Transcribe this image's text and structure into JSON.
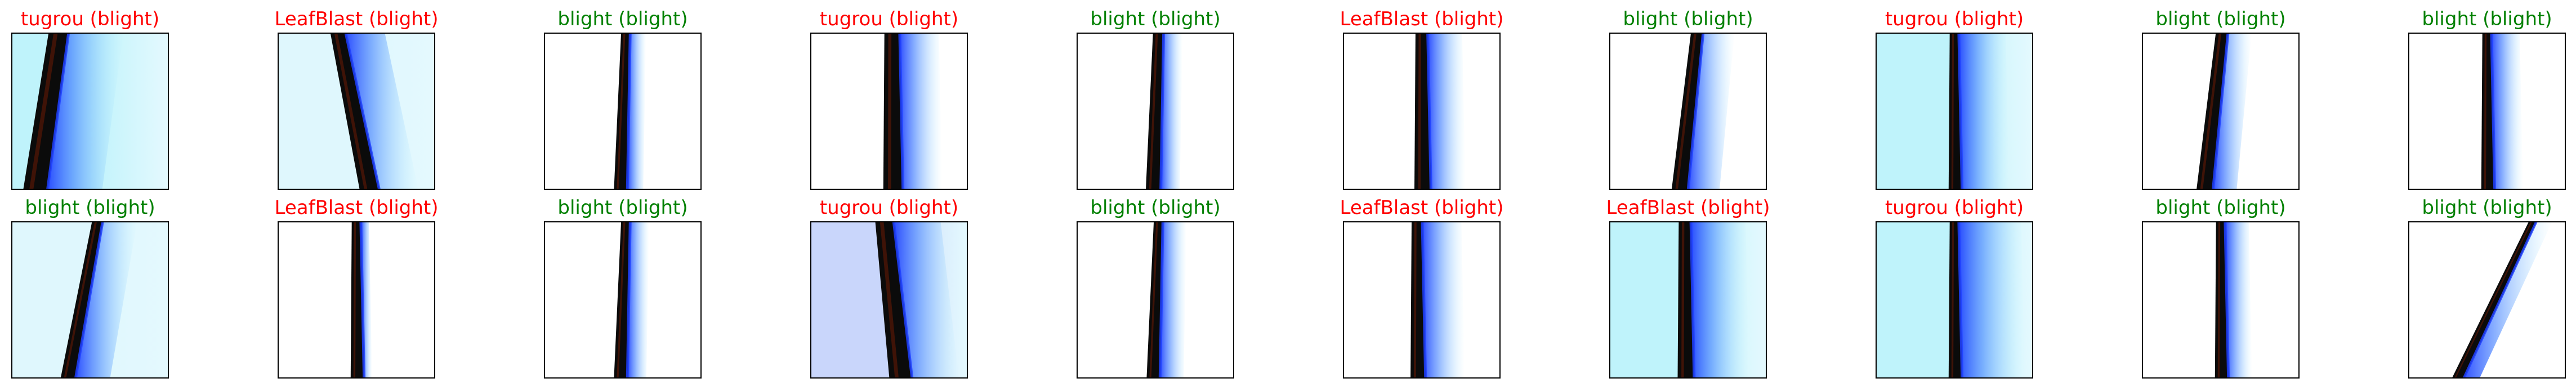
{
  "colors": {
    "correct": "#008000",
    "wrong": "#ff0000"
  },
  "rows": [
    [
      {
        "title": "tugrou (blight)",
        "predicted": "tugrou",
        "actual": "blight",
        "correct": false,
        "icon": "leaf-image"
      },
      {
        "title": "LeafBlast (blight)",
        "predicted": "LeafBlast",
        "actual": "blight",
        "correct": false,
        "icon": "leaf-image"
      },
      {
        "title": "blight (blight)",
        "predicted": "blight",
        "actual": "blight",
        "correct": true,
        "icon": "leaf-image"
      },
      {
        "title": "tugrou (blight)",
        "predicted": "tugrou",
        "actual": "blight",
        "correct": false,
        "icon": "leaf-image"
      },
      {
        "title": "blight (blight)",
        "predicted": "blight",
        "actual": "blight",
        "correct": true,
        "icon": "leaf-image"
      },
      {
        "title": "LeafBlast (blight)",
        "predicted": "LeafBlast",
        "actual": "blight",
        "correct": false,
        "icon": "leaf-image"
      },
      {
        "title": "blight (blight)",
        "predicted": "blight",
        "actual": "blight",
        "correct": true,
        "icon": "leaf-image"
      },
      {
        "title": "tugrou (blight)",
        "predicted": "tugrou",
        "actual": "blight",
        "correct": false,
        "icon": "leaf-image"
      },
      {
        "title": "blight (blight)",
        "predicted": "blight",
        "actual": "blight",
        "correct": true,
        "icon": "leaf-image"
      },
      {
        "title": "blight (blight)",
        "predicted": "blight",
        "actual": "blight",
        "correct": true,
        "icon": "leaf-image"
      }
    ],
    [
      {
        "title": "blight (blight)",
        "predicted": "blight",
        "actual": "blight",
        "correct": true,
        "icon": "leaf-image"
      },
      {
        "title": "LeafBlast (blight)",
        "predicted": "LeafBlast",
        "actual": "blight",
        "correct": false,
        "icon": "leaf-image"
      },
      {
        "title": "blight (blight)",
        "predicted": "blight",
        "actual": "blight",
        "correct": true,
        "icon": "leaf-image"
      },
      {
        "title": "tugrou (blight)",
        "predicted": "tugrou",
        "actual": "blight",
        "correct": false,
        "icon": "leaf-image"
      },
      {
        "title": "blight (blight)",
        "predicted": "blight",
        "actual": "blight",
        "correct": true,
        "icon": "leaf-image"
      },
      {
        "title": "LeafBlast (blight)",
        "predicted": "LeafBlast",
        "actual": "blight",
        "correct": false,
        "icon": "leaf-image"
      },
      {
        "title": "LeafBlast (blight)",
        "predicted": "LeafBlast",
        "actual": "blight",
        "correct": false,
        "icon": "leaf-image"
      },
      {
        "title": "tugrou (blight)",
        "predicted": "tugrou",
        "actual": "blight",
        "correct": false,
        "icon": "leaf-image"
      },
      {
        "title": "blight (blight)",
        "predicted": "blight",
        "actual": "blight",
        "correct": true,
        "icon": "leaf-image"
      },
      {
        "title": "blight (blight)",
        "predicted": "blight",
        "actual": "blight",
        "correct": true,
        "icon": "leaf-image"
      }
    ]
  ]
}
